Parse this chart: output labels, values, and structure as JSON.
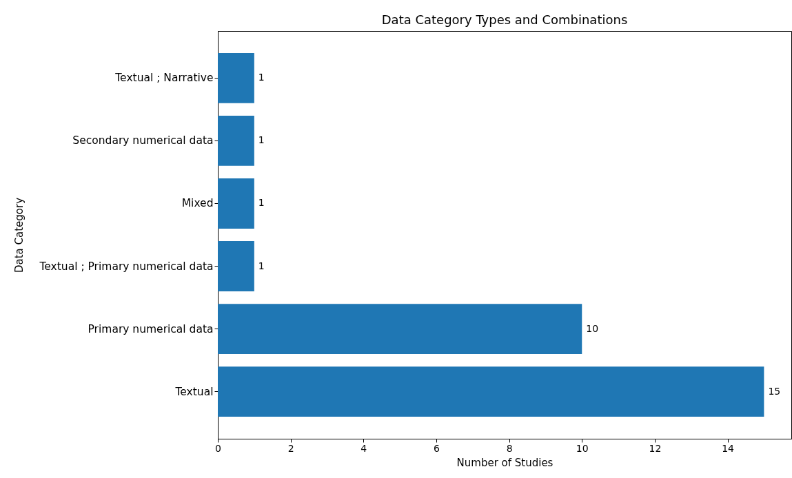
{
  "chart_data": {
    "type": "bar",
    "orientation": "horizontal",
    "title": "Data Category Types and Combinations",
    "xlabel": "Number of Studies",
    "ylabel": "Data Category",
    "categories": [
      "Textual ; Narrative",
      "Secondary numerical data",
      "Mixed",
      "Textual ; Primary numerical data",
      "Primary numerical data",
      "Textual"
    ],
    "values": [
      1,
      1,
      1,
      1,
      10,
      15
    ],
    "color": "#1f77b4",
    "xlim": [
      0,
      15.75
    ],
    "xticks": [
      0,
      2,
      4,
      6,
      8,
      10,
      12,
      14
    ],
    "grid": false,
    "data_labels": true
  }
}
